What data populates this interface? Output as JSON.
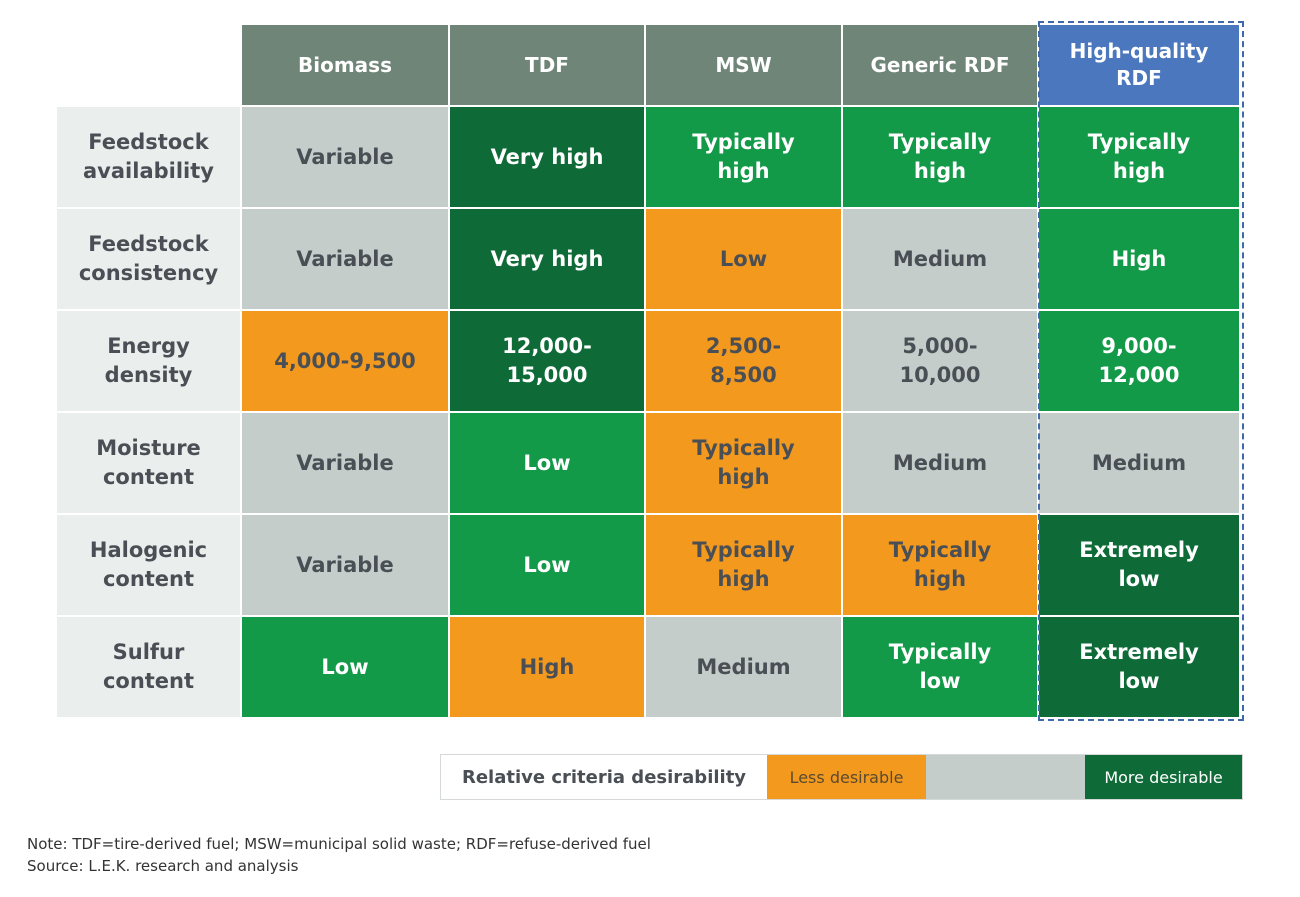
{
  "chart_data": {
    "type": "table",
    "columns": [
      "Biomass",
      "TDF",
      "MSW",
      "Generic RDF",
      "High-quality RDF"
    ],
    "highlighted_column": "High-quality RDF",
    "rows": [
      {
        "label": "Feedstock availability",
        "cells": [
          {
            "text": "Variable",
            "level": "neutral"
          },
          {
            "text": "Very high",
            "level": "most"
          },
          {
            "text": "Typically high",
            "level": "more"
          },
          {
            "text": "Typically high",
            "level": "more"
          },
          {
            "text": "Typically high",
            "level": "more"
          }
        ]
      },
      {
        "label": "Feedstock consistency",
        "cells": [
          {
            "text": "Variable",
            "level": "neutral"
          },
          {
            "text": "Very high",
            "level": "most"
          },
          {
            "text": "Low",
            "level": "less"
          },
          {
            "text": "Medium",
            "level": "neutral"
          },
          {
            "text": "High",
            "level": "more"
          }
        ]
      },
      {
        "label": "Energy density",
        "cells": [
          {
            "text": "4,000-9,500",
            "level": "less"
          },
          {
            "text": "12,000-15,000",
            "level": "most"
          },
          {
            "text": "2,500-8,500",
            "level": "less"
          },
          {
            "text": "5,000-10,000",
            "level": "neutral"
          },
          {
            "text": "9,000-12,000",
            "level": "more"
          }
        ]
      },
      {
        "label": "Moisture content",
        "cells": [
          {
            "text": "Variable",
            "level": "neutral"
          },
          {
            "text": "Low",
            "level": "more"
          },
          {
            "text": "Typically high",
            "level": "less"
          },
          {
            "text": "Medium",
            "level": "neutral"
          },
          {
            "text": "Medium",
            "level": "neutral"
          }
        ]
      },
      {
        "label": "Halogenic content",
        "cells": [
          {
            "text": "Variable",
            "level": "neutral"
          },
          {
            "text": "Low",
            "level": "more"
          },
          {
            "text": "Typically high",
            "level": "less"
          },
          {
            "text": "Typically high",
            "level": "less"
          },
          {
            "text": "Extremely low",
            "level": "most"
          }
        ]
      },
      {
        "label": "Sulfur content",
        "cells": [
          {
            "text": "Low",
            "level": "more"
          },
          {
            "text": "High",
            "level": "less"
          },
          {
            "text": "Medium",
            "level": "neutral"
          },
          {
            "text": "Typically low",
            "level": "more"
          },
          {
            "text": "Extremely low",
            "level": "most"
          }
        ]
      }
    ],
    "colors": {
      "header": "#6f8577",
      "highlight_header": "#4a77bd",
      "less": "#f39a1e",
      "neutral": "#c5cdcb",
      "more": "#139a48",
      "most": "#0e6b38"
    }
  },
  "legend": {
    "title": "Relative criteria desirability",
    "less": "Less desirable",
    "more": "More desirable"
  },
  "notes": {
    "note": "Note: TDF=tire-derived fuel; MSW=municipal solid waste; RDF=refuse-derived fuel",
    "source": "Source: L.E.K. research and analysis"
  }
}
